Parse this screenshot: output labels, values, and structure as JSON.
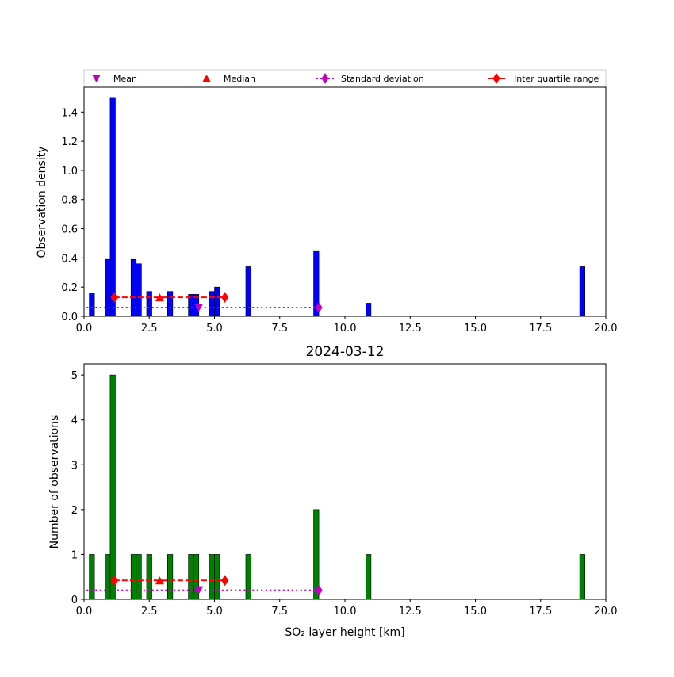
{
  "legend": {
    "items": [
      {
        "label": "Mean",
        "marker": "triangle-down",
        "color": "#bf00bf"
      },
      {
        "label": "Median",
        "marker": "triangle-up",
        "color": "#ff0000"
      },
      {
        "label": "Standard deviation",
        "marker": "diamond",
        "color": "#bf00bf",
        "line": "dotted"
      },
      {
        "label": "Inter quartile range",
        "marker": "diamond",
        "color": "#ff0000",
        "line": "dashed"
      }
    ]
  },
  "chart_data": [
    {
      "type": "bar",
      "title": "",
      "xlabel": "",
      "ylabel": "Observation density",
      "xlim": [
        0,
        20
      ],
      "ylim": [
        0,
        1.57
      ],
      "xticks": [
        "0.0",
        "2.5",
        "5.0",
        "7.5",
        "10.0",
        "12.5",
        "15.0",
        "17.5",
        "20.0"
      ],
      "xtick_values": [
        0,
        2.5,
        5,
        7.5,
        10,
        12.5,
        15,
        17.5,
        20
      ],
      "yticks": [
        "0.0",
        "0.2",
        "0.4",
        "0.6",
        "0.8",
        "1.0",
        "1.2",
        "1.4"
      ],
      "ytick_values": [
        0,
        0.2,
        0.4,
        0.6,
        0.8,
        1.0,
        1.2,
        1.4
      ],
      "bar_color": "#0000ff",
      "bin_width": 0.2,
      "bars": [
        {
          "x": 0.3,
          "value": 0.16
        },
        {
          "x": 0.9,
          "value": 0.39
        },
        {
          "x": 1.1,
          "value": 1.5
        },
        {
          "x": 1.9,
          "value": 0.39
        },
        {
          "x": 2.1,
          "value": 0.36
        },
        {
          "x": 2.5,
          "value": 0.17
        },
        {
          "x": 3.3,
          "value": 0.17
        },
        {
          "x": 4.1,
          "value": 0.15
        },
        {
          "x": 4.3,
          "value": 0.15
        },
        {
          "x": 4.9,
          "value": 0.17
        },
        {
          "x": 5.1,
          "value": 0.2
        },
        {
          "x": 6.3,
          "value": 0.34
        },
        {
          "x": 8.9,
          "value": 0.45
        },
        {
          "x": 10.9,
          "value": 0.09
        },
        {
          "x": 19.1,
          "value": 0.34
        }
      ],
      "stats": {
        "mean": {
          "x": 4.4,
          "y": 0.06
        },
        "median": {
          "x": 2.9,
          "y": 0.13
        },
        "std": {
          "x0": 0.1,
          "x1": 9.0,
          "y": 0.06
        },
        "iqr": {
          "x0": 1.15,
          "x1": 5.4,
          "y": 0.13
        }
      }
    },
    {
      "type": "bar",
      "title": "2024-03-12",
      "xlabel": "SO₂ layer height [km]",
      "ylabel": "Number of observations",
      "xlim": [
        0,
        20
      ],
      "ylim": [
        0,
        5.25
      ],
      "xticks": [
        "0.0",
        "2.5",
        "5.0",
        "7.5",
        "10.0",
        "12.5",
        "15.0",
        "17.5",
        "20.0"
      ],
      "xtick_values": [
        0,
        2.5,
        5,
        7.5,
        10,
        12.5,
        15,
        17.5,
        20
      ],
      "yticks": [
        "0",
        "1",
        "2",
        "3",
        "4",
        "5"
      ],
      "ytick_values": [
        0,
        1,
        2,
        3,
        4,
        5
      ],
      "bar_color": "#008000",
      "bin_width": 0.2,
      "bars": [
        {
          "x": 0.3,
          "value": 1
        },
        {
          "x": 0.9,
          "value": 1
        },
        {
          "x": 1.1,
          "value": 5
        },
        {
          "x": 1.9,
          "value": 1
        },
        {
          "x": 2.1,
          "value": 1
        },
        {
          "x": 2.5,
          "value": 1
        },
        {
          "x": 3.3,
          "value": 1
        },
        {
          "x": 4.1,
          "value": 1
        },
        {
          "x": 4.3,
          "value": 1
        },
        {
          "x": 4.9,
          "value": 1
        },
        {
          "x": 5.1,
          "value": 1
        },
        {
          "x": 6.3,
          "value": 1
        },
        {
          "x": 8.9,
          "value": 2
        },
        {
          "x": 10.9,
          "value": 1
        },
        {
          "x": 19.1,
          "value": 1
        }
      ],
      "stats": {
        "mean": {
          "x": 4.4,
          "y": 0.2
        },
        "median": {
          "x": 2.9,
          "y": 0.42
        },
        "std": {
          "x0": 0.1,
          "x1": 9.0,
          "y": 0.2
        },
        "iqr": {
          "x0": 1.15,
          "x1": 5.4,
          "y": 0.42
        }
      }
    }
  ]
}
